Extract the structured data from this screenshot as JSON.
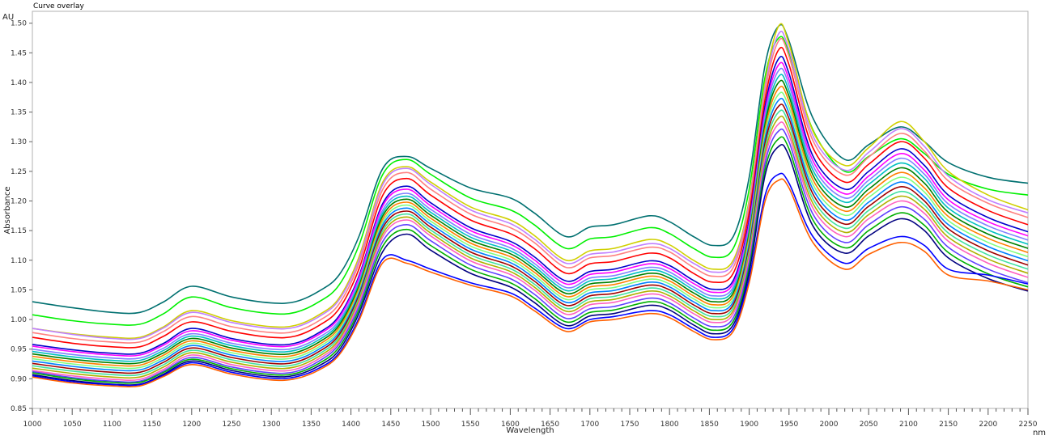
{
  "chart_data": {
    "type": "line",
    "title": "Curve overlay",
    "xlabel": "Wavelength",
    "ylabel": "Absorbance",
    "x_unit": "nm",
    "y_unit": "AU",
    "xlim": [
      1000,
      2250
    ],
    "ylim": [
      0.85,
      1.52
    ],
    "x_ticks": [
      1000,
      1050,
      1100,
      1150,
      1200,
      1250,
      1300,
      1350,
      1400,
      1450,
      1500,
      1550,
      1600,
      1650,
      1700,
      1750,
      1800,
      1850,
      1900,
      1950,
      2000,
      2050,
      2100,
      2150,
      2200,
      2250
    ],
    "y_ticks": [
      "0.85",
      "0.90",
      "0.95",
      "1.00",
      "1.05",
      "1.10",
      "1.15",
      "1.20",
      "1.25",
      "1.30",
      "1.35",
      "1.40",
      "1.45",
      "1.50"
    ],
    "grid": true,
    "x": [
      1000,
      1050,
      1100,
      1135,
      1165,
      1200,
      1250,
      1300,
      1330,
      1360,
      1385,
      1410,
      1440,
      1470,
      1500,
      1550,
      1600,
      1630,
      1670,
      1700,
      1730,
      1775,
      1800,
      1830,
      1855,
      1880,
      1900,
      1920,
      1937,
      1950,
      1980,
      2020,
      2050,
      2090,
      2120,
      2150,
      2200,
      2250
    ],
    "series": [
      {
        "color": "#007070",
        "values": [
          1.03,
          1.02,
          1.012,
          1.012,
          1.03,
          1.056,
          1.038,
          1.028,
          1.03,
          1.048,
          1.075,
          1.14,
          1.255,
          1.275,
          1.255,
          1.222,
          1.205,
          1.18,
          1.14,
          1.156,
          1.16,
          1.175,
          1.165,
          1.14,
          1.125,
          1.14,
          1.24,
          1.43,
          1.495,
          1.47,
          1.34,
          1.27,
          1.295,
          1.325,
          1.3,
          1.265,
          1.24,
          1.23
        ]
      },
      {
        "color": "#00f000",
        "values": [
          1.008,
          0.998,
          0.992,
          0.992,
          1.01,
          1.038,
          1.02,
          1.01,
          1.012,
          1.03,
          1.058,
          1.125,
          1.245,
          1.27,
          1.245,
          1.205,
          1.185,
          1.16,
          1.12,
          1.136,
          1.14,
          1.155,
          1.145,
          1.12,
          1.105,
          1.12,
          1.22,
          1.41,
          1.475,
          1.45,
          1.32,
          1.25,
          1.275,
          1.305,
          1.28,
          1.245,
          1.22,
          1.21
        ]
      },
      {
        "color": "#d0d000",
        "values": [
          0.985,
          0.976,
          0.97,
          0.97,
          0.988,
          1.015,
          0.998,
          0.988,
          0.99,
          1.008,
          1.036,
          1.105,
          1.232,
          1.258,
          1.232,
          1.19,
          1.168,
          1.142,
          1.1,
          1.116,
          1.12,
          1.135,
          1.126,
          1.1,
          1.085,
          1.1,
          1.202,
          1.4,
          1.495,
          1.465,
          1.318,
          1.26,
          1.29,
          1.334,
          1.3,
          1.25,
          1.21,
          1.185
        ]
      },
      {
        "color": "#c080ff",
        "values": [
          0.985,
          0.975,
          0.968,
          0.968,
          0.986,
          1.012,
          0.995,
          0.985,
          0.987,
          1.005,
          1.033,
          1.1,
          1.228,
          1.255,
          1.228,
          1.185,
          1.162,
          1.136,
          1.095,
          1.11,
          1.114,
          1.128,
          1.12,
          1.095,
          1.08,
          1.095,
          1.196,
          1.392,
          1.482,
          1.455,
          1.31,
          1.252,
          1.282,
          1.322,
          1.292,
          1.242,
          1.202,
          1.18
        ]
      },
      {
        "color": "#ff8080",
        "values": [
          0.978,
          0.968,
          0.962,
          0.962,
          0.98,
          1.005,
          0.988,
          0.978,
          0.98,
          0.998,
          1.026,
          1.094,
          1.22,
          1.248,
          1.22,
          1.178,
          1.155,
          1.13,
          1.088,
          1.104,
          1.108,
          1.122,
          1.114,
          1.088,
          1.073,
          1.088,
          1.19,
          1.384,
          1.47,
          1.444,
          1.302,
          1.244,
          1.274,
          1.314,
          1.284,
          1.234,
          1.196,
          1.172
        ]
      },
      {
        "color": "#ff0000",
        "values": [
          0.97,
          0.96,
          0.954,
          0.954,
          0.972,
          0.996,
          0.98,
          0.97,
          0.972,
          0.99,
          1.018,
          1.085,
          1.21,
          1.238,
          1.21,
          1.168,
          1.145,
          1.12,
          1.078,
          1.094,
          1.098,
          1.112,
          1.104,
          1.078,
          1.063,
          1.078,
          1.18,
          1.372,
          1.455,
          1.43,
          1.29,
          1.232,
          1.262,
          1.3,
          1.272,
          1.222,
          1.184,
          1.16
        ]
      },
      {
        "color": "#0000cc",
        "values": [
          0.958,
          0.949,
          0.943,
          0.943,
          0.96,
          0.985,
          0.968,
          0.958,
          0.96,
          0.978,
          1.006,
          1.073,
          1.196,
          1.225,
          1.197,
          1.155,
          1.132,
          1.106,
          1.065,
          1.081,
          1.085,
          1.099,
          1.091,
          1.066,
          1.051,
          1.066,
          1.168,
          1.36,
          1.44,
          1.415,
          1.276,
          1.22,
          1.25,
          1.288,
          1.26,
          1.21,
          1.172,
          1.148
        ]
      },
      {
        "color": "#ff00ff",
        "values": [
          0.955,
          0.946,
          0.94,
          0.94,
          0.957,
          0.981,
          0.965,
          0.955,
          0.957,
          0.975,
          1.003,
          1.07,
          1.192,
          1.22,
          1.192,
          1.15,
          1.127,
          1.101,
          1.06,
          1.076,
          1.08,
          1.094,
          1.086,
          1.061,
          1.046,
          1.061,
          1.162,
          1.352,
          1.43,
          1.405,
          1.268,
          1.212,
          1.242,
          1.28,
          1.252,
          1.202,
          1.165,
          1.141
        ]
      },
      {
        "color": "#8080ff",
        "values": [
          0.95,
          0.941,
          0.935,
          0.935,
          0.952,
          0.976,
          0.96,
          0.95,
          0.952,
          0.97,
          0.998,
          1.064,
          1.185,
          1.213,
          1.186,
          1.144,
          1.121,
          1.095,
          1.054,
          1.07,
          1.074,
          1.088,
          1.08,
          1.055,
          1.04,
          1.055,
          1.156,
          1.344,
          1.42,
          1.396,
          1.26,
          1.205,
          1.235,
          1.272,
          1.245,
          1.195,
          1.158,
          1.134
        ]
      },
      {
        "color": "#00c0c0",
        "values": [
          0.946,
          0.937,
          0.931,
          0.931,
          0.948,
          0.972,
          0.956,
          0.946,
          0.948,
          0.966,
          0.994,
          1.06,
          1.18,
          1.208,
          1.181,
          1.139,
          1.116,
          1.09,
          1.049,
          1.065,
          1.069,
          1.083,
          1.075,
          1.05,
          1.035,
          1.05,
          1.15,
          1.336,
          1.41,
          1.386,
          1.252,
          1.198,
          1.228,
          1.264,
          1.238,
          1.188,
          1.151,
          1.127
        ]
      },
      {
        "color": "#008000",
        "values": [
          0.942,
          0.933,
          0.927,
          0.927,
          0.944,
          0.968,
          0.952,
          0.942,
          0.944,
          0.962,
          0.99,
          1.056,
          1.175,
          1.203,
          1.176,
          1.134,
          1.111,
          1.085,
          1.044,
          1.06,
          1.064,
          1.078,
          1.07,
          1.045,
          1.03,
          1.045,
          1.145,
          1.33,
          1.4,
          1.377,
          1.244,
          1.19,
          1.22,
          1.256,
          1.23,
          1.181,
          1.144,
          1.12
        ]
      },
      {
        "color": "#ff8000",
        "values": [
          0.938,
          0.929,
          0.923,
          0.923,
          0.94,
          0.964,
          0.948,
          0.938,
          0.94,
          0.958,
          0.986,
          1.052,
          1.17,
          1.198,
          1.171,
          1.129,
          1.106,
          1.08,
          1.039,
          1.055,
          1.059,
          1.073,
          1.065,
          1.04,
          1.025,
          1.04,
          1.14,
          1.322,
          1.39,
          1.368,
          1.236,
          1.183,
          1.213,
          1.248,
          1.222,
          1.174,
          1.137,
          1.113
        ]
      },
      {
        "color": "#80ff80",
        "values": [
          0.934,
          0.925,
          0.919,
          0.919,
          0.936,
          0.96,
          0.944,
          0.934,
          0.936,
          0.954,
          0.982,
          1.048,
          1.165,
          1.193,
          1.166,
          1.124,
          1.101,
          1.075,
          1.034,
          1.05,
          1.054,
          1.068,
          1.06,
          1.035,
          1.02,
          1.035,
          1.134,
          1.314,
          1.38,
          1.358,
          1.228,
          1.176,
          1.206,
          1.24,
          1.215,
          1.167,
          1.13,
          1.106
        ]
      },
      {
        "color": "#0080ff",
        "values": [
          0.93,
          0.921,
          0.915,
          0.915,
          0.932,
          0.956,
          0.94,
          0.93,
          0.932,
          0.95,
          0.978,
          1.044,
          1.16,
          1.188,
          1.161,
          1.119,
          1.096,
          1.07,
          1.029,
          1.045,
          1.049,
          1.063,
          1.055,
          1.03,
          1.015,
          1.03,
          1.128,
          1.306,
          1.37,
          1.348,
          1.22,
          1.168,
          1.198,
          1.232,
          1.207,
          1.16,
          1.123,
          1.099
        ]
      },
      {
        "color": "#a00000",
        "values": [
          0.926,
          0.917,
          0.911,
          0.911,
          0.928,
          0.952,
          0.936,
          0.926,
          0.928,
          0.946,
          0.974,
          1.04,
          1.155,
          1.183,
          1.156,
          1.114,
          1.091,
          1.065,
          1.024,
          1.04,
          1.044,
          1.058,
          1.05,
          1.025,
          1.01,
          1.025,
          1.122,
          1.298,
          1.36,
          1.339,
          1.212,
          1.161,
          1.191,
          1.224,
          1.2,
          1.153,
          1.116,
          1.092
        ]
      },
      {
        "color": "#40e0a0",
        "values": [
          0.922,
          0.913,
          0.907,
          0.907,
          0.924,
          0.948,
          0.932,
          0.922,
          0.924,
          0.942,
          0.97,
          1.036,
          1.15,
          1.178,
          1.151,
          1.109,
          1.086,
          1.06,
          1.019,
          1.035,
          1.039,
          1.053,
          1.045,
          1.02,
          1.005,
          1.02,
          1.116,
          1.29,
          1.35,
          1.33,
          1.204,
          1.154,
          1.184,
          1.216,
          1.193,
          1.146,
          1.109,
          1.085
        ]
      },
      {
        "color": "#b0b000",
        "values": [
          0.918,
          0.909,
          0.903,
          0.903,
          0.92,
          0.944,
          0.928,
          0.918,
          0.92,
          0.938,
          0.966,
          1.032,
          1.145,
          1.173,
          1.146,
          1.104,
          1.081,
          1.055,
          1.014,
          1.03,
          1.034,
          1.048,
          1.04,
          1.015,
          1.0,
          1.015,
          1.11,
          1.282,
          1.34,
          1.32,
          1.196,
          1.147,
          1.177,
          1.208,
          1.186,
          1.139,
          1.102,
          1.078
        ]
      },
      {
        "color": "#ff60c0",
        "values": [
          0.914,
          0.905,
          0.899,
          0.899,
          0.916,
          0.94,
          0.924,
          0.914,
          0.916,
          0.934,
          0.962,
          1.028,
          1.14,
          1.168,
          1.141,
          1.099,
          1.076,
          1.05,
          1.009,
          1.025,
          1.029,
          1.043,
          1.035,
          1.01,
          0.995,
          1.01,
          1.104,
          1.274,
          1.33,
          1.311,
          1.188,
          1.14,
          1.17,
          1.2,
          1.179,
          1.132,
          1.095,
          1.071
        ]
      },
      {
        "color": "#6040ff",
        "values": [
          0.912,
          0.902,
          0.896,
          0.896,
          0.913,
          0.936,
          0.92,
          0.91,
          0.912,
          0.93,
          0.958,
          1.022,
          1.132,
          1.16,
          1.133,
          1.092,
          1.069,
          1.043,
          1.002,
          1.018,
          1.022,
          1.036,
          1.028,
          1.003,
          0.988,
          1.003,
          1.096,
          1.264,
          1.318,
          1.3,
          1.178,
          1.13,
          1.16,
          1.19,
          1.169,
          1.122,
          1.085,
          1.062
        ]
      },
      {
        "color": "#00b000",
        "values": [
          0.91,
          0.9,
          0.894,
          0.894,
          0.911,
          0.933,
          0.917,
          0.907,
          0.909,
          0.926,
          0.953,
          1.016,
          1.124,
          1.152,
          1.125,
          1.085,
          1.062,
          1.036,
          0.996,
          1.012,
          1.016,
          1.03,
          1.022,
          0.997,
          0.982,
          0.997,
          1.088,
          1.254,
          1.305,
          1.288,
          1.168,
          1.121,
          1.15,
          1.18,
          1.159,
          1.113,
          1.077,
          1.055
        ]
      },
      {
        "color": "#000080",
        "values": [
          0.907,
          0.897,
          0.891,
          0.891,
          0.908,
          0.93,
          0.914,
          0.904,
          0.906,
          0.922,
          0.948,
          1.01,
          1.115,
          1.144,
          1.117,
          1.078,
          1.055,
          1.029,
          0.99,
          1.006,
          1.01,
          1.024,
          1.016,
          0.991,
          0.976,
          0.991,
          1.08,
          1.244,
          1.292,
          1.276,
          1.158,
          1.112,
          1.141,
          1.17,
          1.15,
          1.104,
          1.069,
          1.048
        ]
      },
      {
        "color": "#0000ff",
        "values": [
          0.905,
          0.895,
          0.89,
          0.89,
          0.906,
          0.927,
          0.911,
          0.901,
          0.903,
          0.918,
          0.943,
          1.002,
          1.102,
          1.1,
          1.085,
          1.062,
          1.045,
          1.02,
          0.985,
          1.0,
          1.005,
          1.015,
          1.008,
          0.985,
          0.97,
          0.985,
          1.07,
          1.21,
          1.245,
          1.23,
          1.14,
          1.095,
          1.12,
          1.14,
          1.125,
          1.085,
          1.075,
          1.06
        ]
      },
      {
        "color": "#ff6000",
        "values": [
          0.903,
          0.893,
          0.888,
          0.888,
          0.904,
          0.924,
          0.908,
          0.898,
          0.9,
          0.915,
          0.94,
          0.998,
          1.096,
          1.095,
          1.08,
          1.058,
          1.04,
          1.015,
          0.98,
          0.996,
          1.0,
          1.01,
          1.003,
          0.98,
          0.966,
          0.98,
          1.062,
          1.2,
          1.235,
          1.222,
          1.13,
          1.085,
          1.11,
          1.13,
          1.115,
          1.075,
          1.065,
          1.05
        ]
      }
    ]
  }
}
